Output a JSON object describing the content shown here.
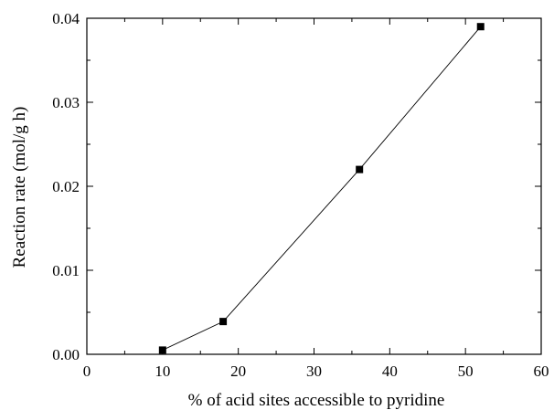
{
  "chart_data": {
    "type": "line",
    "title": "",
    "xlabel": "% of acid sites accessible to pyridine",
    "ylabel": "Reaction rate (mol/g h)",
    "xlim": [
      0,
      60
    ],
    "ylim": [
      0,
      0.04
    ],
    "x_ticks": [
      "0",
      "10",
      "20",
      "30",
      "40",
      "50",
      "60"
    ],
    "y_ticks": [
      "0.00",
      "0.01",
      "0.02",
      "0.03",
      "0.04"
    ],
    "grid": false,
    "legend": "none",
    "marker": "square",
    "line_color": "#000000",
    "marker_color": "#000000",
    "series": [
      {
        "x": [
          10,
          18,
          36,
          52
        ],
        "y": [
          0.0005,
          0.0039,
          0.022,
          0.039
        ]
      }
    ]
  }
}
